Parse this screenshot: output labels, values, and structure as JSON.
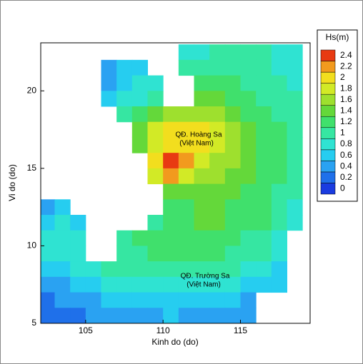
{
  "chart_data": {
    "type": "heatmap",
    "x_label": "Kinh do (do)",
    "y_label": "Vi do (do)",
    "xlim": [
      102.1,
      119.5
    ],
    "ylim": [
      5,
      23.1
    ],
    "xticks": [
      105,
      110,
      115
    ],
    "yticks": [
      5,
      10,
      15,
      20
    ],
    "annotations": [
      "QĐ. Hoàng Sa",
      "(Việt Nam)",
      "QĐ. Trường Sa",
      "(Việt Nam)"
    ],
    "colorbar": {
      "title": "Hs(m)",
      "ticks": [
        0,
        0.2,
        0.4,
        0.6,
        0.8,
        1,
        1.2,
        1.4,
        1.6,
        1.8,
        2,
        2.2,
        2.4
      ],
      "colors": [
        "#1a3ce0",
        "#1f70ea",
        "#2aa2f2",
        "#26cdf0",
        "#2fe3d2",
        "#36e6a2",
        "#40e06c",
        "#64d83a",
        "#9ee02e",
        "#d2ea26",
        "#f2de1e",
        "#f29a1e",
        "#e83a12"
      ]
    },
    "field": {
      "lon": [
        102.5,
        103.5,
        104.5,
        105.5,
        106.5,
        107.5,
        108.5,
        109.5,
        110.5,
        111.5,
        112.5,
        113.5,
        114.5,
        115.5,
        116.5,
        117.5,
        118.5
      ],
      "lat": [
        22.5,
        21.5,
        20.5,
        19.5,
        18.5,
        17.5,
        16.5,
        15.5,
        14.5,
        13.5,
        12.5,
        11.5,
        10.5,
        9.5,
        8.5,
        7.5,
        6.5,
        5.5
      ],
      "hs": [
        [
          null,
          null,
          null,
          null,
          null,
          null,
          null,
          null,
          null,
          0.8,
          0.9,
          1.0,
          1.0,
          1.0,
          1.0,
          0.9,
          0.9
        ],
        [
          null,
          null,
          null,
          null,
          0.4,
          0.6,
          0.6,
          null,
          null,
          1.0,
          1.1,
          1.1,
          1.1,
          1.0,
          1.0,
          0.9,
          0.9
        ],
        [
          null,
          null,
          null,
          null,
          0.5,
          0.7,
          0.8,
          0.8,
          null,
          null,
          1.2,
          1.3,
          1.2,
          1.1,
          1.0,
          1.0,
          0.9
        ],
        [
          null,
          null,
          null,
          null,
          0.6,
          0.8,
          0.9,
          1.0,
          null,
          null,
          1.4,
          1.4,
          1.3,
          1.2,
          1.1,
          1.0,
          1.0
        ],
        [
          null,
          null,
          null,
          null,
          null,
          1.0,
          1.2,
          1.4,
          1.6,
          1.7,
          1.7,
          1.6,
          1.5,
          1.3,
          1.2,
          1.1,
          1.0
        ],
        [
          null,
          null,
          null,
          null,
          null,
          null,
          1.5,
          1.8,
          2.0,
          2.1,
          2.0,
          1.9,
          1.7,
          1.5,
          1.3,
          1.2,
          1.1
        ],
        [
          null,
          null,
          null,
          null,
          null,
          null,
          1.4,
          1.9,
          2.1,
          2.1,
          2.0,
          1.8,
          1.6,
          1.5,
          1.3,
          1.2,
          1.1
        ],
        [
          null,
          null,
          null,
          null,
          null,
          null,
          null,
          2.0,
          2.4,
          2.2,
          1.9,
          1.7,
          1.6,
          1.4,
          1.3,
          1.2,
          1.1
        ],
        [
          null,
          null,
          null,
          null,
          null,
          null,
          null,
          1.9,
          2.3,
          1.8,
          1.6,
          1.6,
          1.5,
          1.4,
          1.3,
          1.2,
          1.1
        ],
        [
          null,
          null,
          null,
          null,
          null,
          null,
          null,
          null,
          1.5,
          1.4,
          1.5,
          1.5,
          1.4,
          1.3,
          1.2,
          1.1,
          1.0
        ],
        [
          0.5,
          0.6,
          null,
          null,
          null,
          null,
          null,
          null,
          1.3,
          1.3,
          1.4,
          1.4,
          1.3,
          1.3,
          1.2,
          1.0,
          0.9
        ],
        [
          0.7,
          0.8,
          0.7,
          null,
          null,
          null,
          null,
          1.0,
          1.3,
          1.3,
          1.4,
          1.4,
          1.3,
          1.3,
          1.2,
          1.0,
          0.9
        ],
        [
          0.8,
          0.8,
          0.8,
          null,
          null,
          1.1,
          1.2,
          1.3,
          1.3,
          1.3,
          1.3,
          1.3,
          1.2,
          1.1,
          1.0,
          0.9,
          null
        ],
        [
          0.8,
          0.8,
          0.9,
          null,
          null,
          1.0,
          1.1,
          1.2,
          1.2,
          1.2,
          1.2,
          1.2,
          1.1,
          1.1,
          1.0,
          0.8,
          null
        ],
        [
          0.6,
          0.7,
          0.8,
          0.9,
          1.0,
          1.0,
          1.0,
          1.0,
          1.0,
          1.0,
          1.0,
          1.0,
          1.0,
          0.9,
          0.8,
          0.7,
          null
        ],
        [
          0.4,
          0.5,
          0.6,
          0.7,
          0.8,
          0.8,
          0.8,
          0.8,
          0.9,
          0.9,
          0.9,
          0.9,
          0.8,
          0.7,
          0.6,
          0.6,
          null
        ],
        [
          0.3,
          0.4,
          0.4,
          0.5,
          0.6,
          0.6,
          0.7,
          0.7,
          0.7,
          0.7,
          0.6,
          0.6,
          0.6,
          0.5,
          null,
          null,
          null
        ],
        [
          0.3,
          0.3,
          0.3,
          0.4,
          0.4,
          0.5,
          0.5,
          0.5,
          0.6,
          0.5,
          0.5,
          0.5,
          0.5,
          0.4,
          null,
          null,
          null
        ]
      ]
    }
  }
}
